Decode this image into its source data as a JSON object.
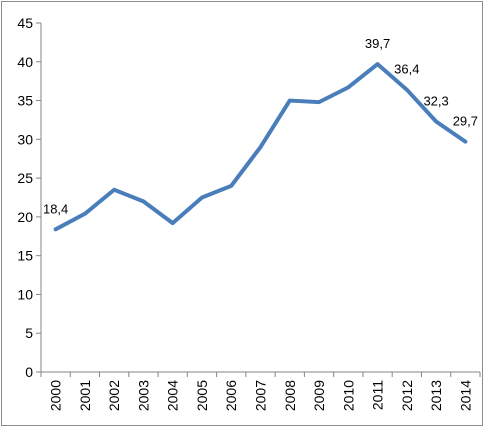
{
  "chart_data": {
    "type": "line",
    "title": "",
    "xlabel": "",
    "ylabel": "",
    "categories": [
      "2000",
      "2001",
      "2002",
      "2003",
      "2004",
      "2005",
      "2006",
      "2007",
      "2008",
      "2009",
      "2010",
      "2011",
      "2012",
      "2013",
      "2014"
    ],
    "series": [
      {
        "values": [
          18.4,
          20.4,
          23.5,
          22.0,
          19.2,
          22.5,
          24.0,
          29.0,
          35.0,
          34.8,
          36.7,
          39.7,
          36.4,
          32.3,
          29.7
        ],
        "color": "#4a7ebb"
      }
    ],
    "data_labels": [
      {
        "index": 0,
        "text": "18,4"
      },
      {
        "index": 11,
        "text": "39,7"
      },
      {
        "index": 12,
        "text": "36,4"
      },
      {
        "index": 13,
        "text": "32,3"
      },
      {
        "index": 14,
        "text": "29,7"
      }
    ],
    "ylim": [
      0,
      45
    ],
    "y_ticks": [
      0,
      5,
      10,
      15,
      20,
      25,
      30,
      35,
      40,
      45
    ],
    "grid": false,
    "legend": "none"
  }
}
